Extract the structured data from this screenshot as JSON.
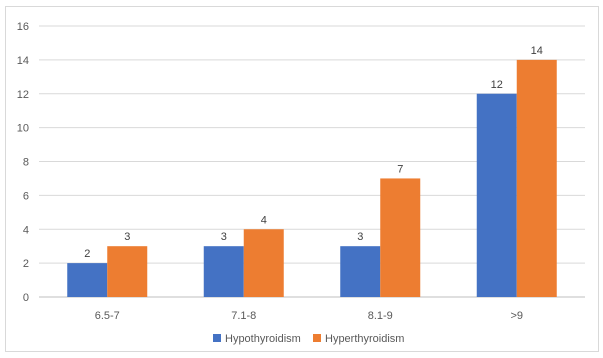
{
  "chart_data": {
    "type": "bar",
    "title": "",
    "xlabel": "",
    "ylabel": "",
    "categories": [
      "6.5-7",
      "7.1-8",
      "8.1-9",
      ">9"
    ],
    "series": [
      {
        "name": "Hypothyroidism",
        "values": [
          2,
          3,
          3,
          12
        ],
        "color": "#4472c4"
      },
      {
        "name": "Hyperthyroidism",
        "values": [
          3,
          4,
          7,
          14
        ],
        "color": "#ed7d31"
      }
    ],
    "ylim": [
      0,
      16
    ],
    "yticks": [
      0,
      2,
      4,
      6,
      8,
      10,
      12,
      14,
      16
    ],
    "grid": true,
    "gridColor": "#d9d9d9",
    "legend_position": "bottom",
    "data_labels": true
  }
}
